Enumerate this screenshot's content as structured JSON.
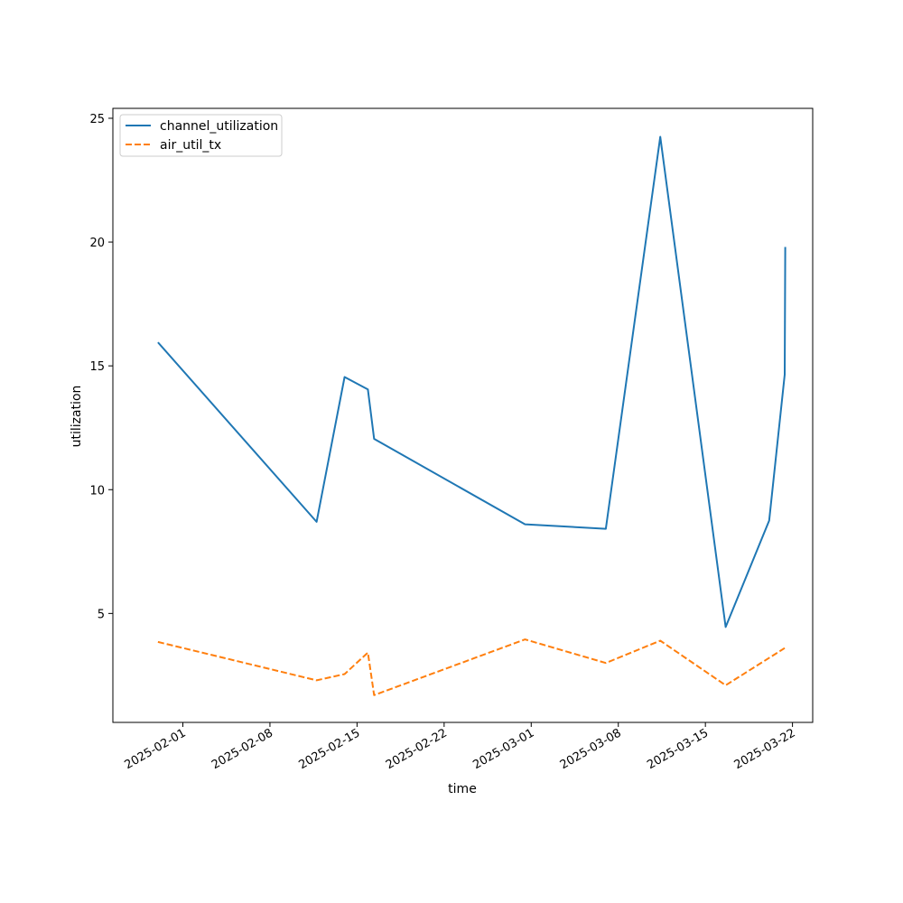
{
  "chart_data": {
    "type": "line",
    "xlabel": "time",
    "ylabel": "utilization",
    "x_scale": "date",
    "xlim": [
      "2025-01-26T09:00",
      "2025-03-23T15:00"
    ],
    "ylim": [
      0.6,
      25.4
    ],
    "xticks": [
      "2025-02-01",
      "2025-02-08",
      "2025-02-15",
      "2025-02-22",
      "2025-03-01",
      "2025-03-08",
      "2025-03-15",
      "2025-03-22"
    ],
    "yticks": [
      5,
      10,
      15,
      20,
      25
    ],
    "grid": false,
    "legend_position": "upper-left",
    "series": [
      {
        "name": "channel_utilization",
        "color": "#1f77b4",
        "style": "solid",
        "points": [
          {
            "x": "2025-01-30T00:00",
            "y": 15.95
          },
          {
            "x": "2025-02-11T18:00",
            "y": 8.7
          },
          {
            "x": "2025-02-14T00:00",
            "y": 14.55
          },
          {
            "x": "2025-02-15T21:00",
            "y": 14.05
          },
          {
            "x": "2025-02-16T09:00",
            "y": 12.05
          },
          {
            "x": "2025-02-28T12:00",
            "y": 8.6
          },
          {
            "x": "2025-03-07T00:00",
            "y": 8.42
          },
          {
            "x": "2025-03-11T09:00",
            "y": 24.25
          },
          {
            "x": "2025-03-16T15:00",
            "y": 4.45
          },
          {
            "x": "2025-03-20T03:00",
            "y": 8.75
          },
          {
            "x": "2025-03-21T09:00",
            "y": 14.65
          },
          {
            "x": "2025-03-21T10:00",
            "y": 19.8
          }
        ]
      },
      {
        "name": "air_util_tx",
        "color": "#ff7f0e",
        "style": "dashed",
        "points": [
          {
            "x": "2025-01-30T00:00",
            "y": 3.85
          },
          {
            "x": "2025-02-11T18:00",
            "y": 2.3
          },
          {
            "x": "2025-02-14T00:00",
            "y": 2.55
          },
          {
            "x": "2025-02-15T21:00",
            "y": 3.42
          },
          {
            "x": "2025-02-16T09:00",
            "y": 1.7
          },
          {
            "x": "2025-02-28T12:00",
            "y": 3.95
          },
          {
            "x": "2025-03-07T00:00",
            "y": 3.0
          },
          {
            "x": "2025-03-11T09:00",
            "y": 3.9
          },
          {
            "x": "2025-03-16T15:00",
            "y": 2.1
          },
          {
            "x": "2025-03-21T09:00",
            "y": 3.6
          }
        ]
      }
    ]
  }
}
